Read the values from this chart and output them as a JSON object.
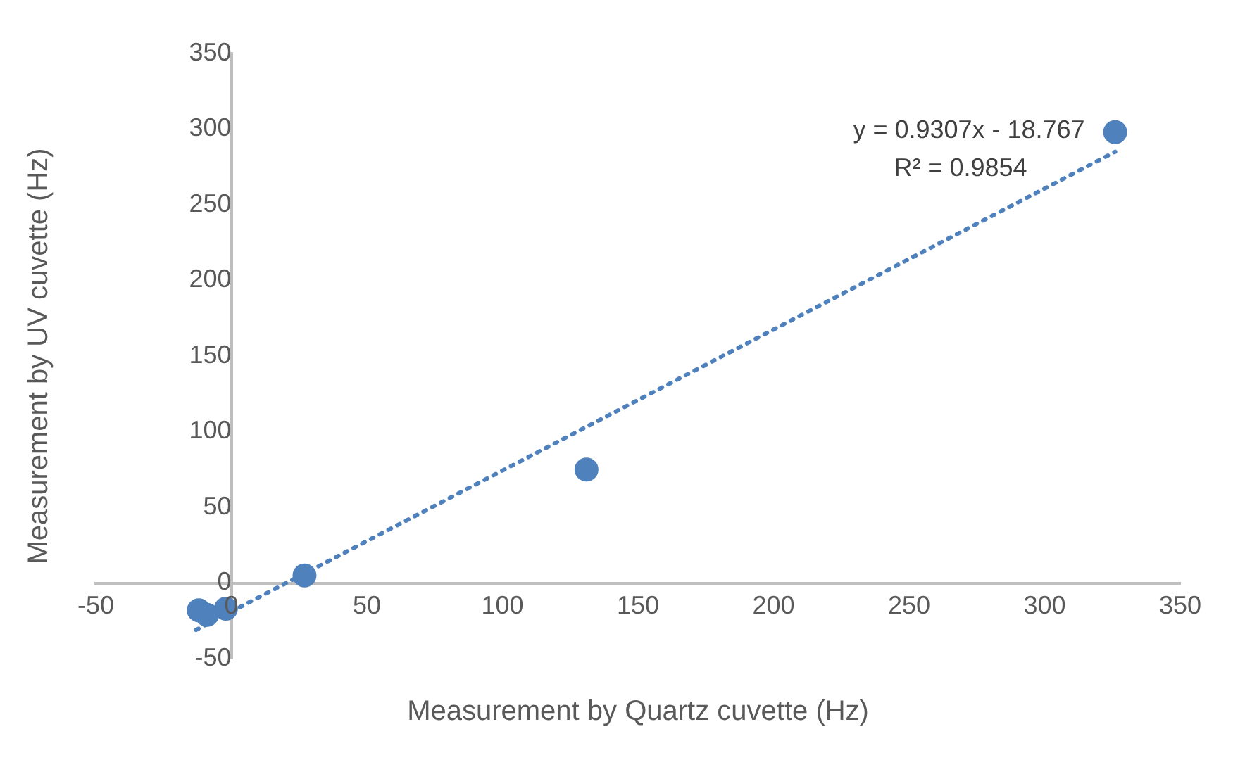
{
  "chart_data": {
    "type": "scatter",
    "xlabel": "Measurement by Quartz cuvette (Hz)",
    "ylabel": "Measurement by UV cuvette (Hz)",
    "xlim": [
      -50,
      350
    ],
    "xticks": [
      -50,
      0,
      50,
      100,
      150,
      200,
      250,
      300,
      350
    ],
    "ylim": [
      -50,
      350
    ],
    "yticks": [
      -50,
      0,
      50,
      100,
      150,
      200,
      250,
      300,
      350
    ],
    "grid": false,
    "legend": false,
    "marker": "circle",
    "series": [
      {
        "color": "#4f81bd",
        "x": [
          -12,
          -9,
          -2,
          27,
          131,
          326
        ],
        "values": [
          -18,
          -21,
          -17,
          5,
          75,
          298
        ]
      },
      {
        "type": "line",
        "color": "#4f81bd",
        "line_style": "dotted",
        "marker": "none",
        "x": [
          -13,
          326
        ],
        "values": [
          -31,
          285
        ]
      }
    ],
    "annotations": [
      "y = 0.9307x - 18.767",
      "R² = 0.9854"
    ]
  }
}
